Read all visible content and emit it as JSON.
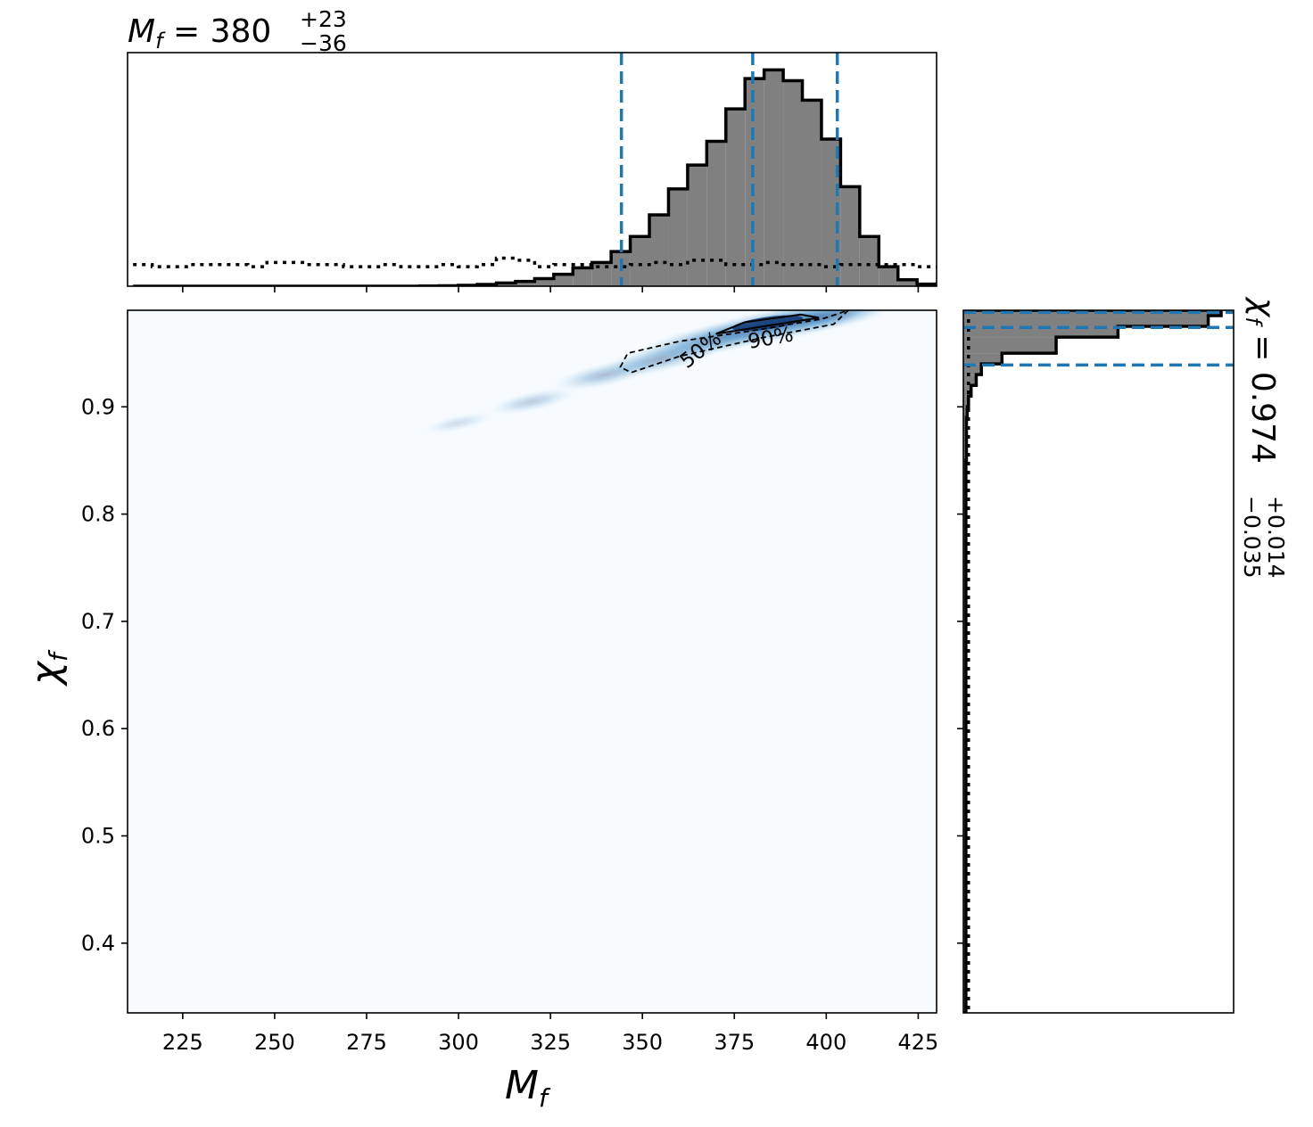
{
  "chart_data": [
    {
      "type": "histogram",
      "panel": "top-marginal",
      "title": {
        "symbol": "M",
        "sub": "f",
        "eq": " = ",
        "value": "380",
        "plus": "+23",
        "minus": "−36"
      },
      "x": [
        211.5,
        216.7,
        221.9,
        227.1,
        232.3,
        237.5,
        242.7,
        247.9,
        253.1,
        258.3,
        263.5,
        268.7,
        273.9,
        279.1,
        284.3,
        289.5,
        294.7,
        299.9,
        305.1,
        310.3,
        315.5,
        320.7,
        325.9,
        331.1,
        336.3,
        341.5,
        346.7,
        351.9,
        357.1,
        362.3,
        367.5,
        372.7,
        377.9,
        383.1,
        388.3,
        393.5,
        398.7,
        403.9,
        409.1,
        414.3,
        419.5,
        424.7,
        429.9
      ],
      "values": [
        0,
        0,
        0,
        0,
        0,
        0,
        0,
        0,
        0,
        0,
        0,
        0,
        0,
        0,
        0,
        0.001,
        0.002,
        0.004,
        0.008,
        0.015,
        0.022,
        0.035,
        0.055,
        0.085,
        0.11,
        0.16,
        0.23,
        0.33,
        0.45,
        0.56,
        0.67,
        0.82,
        0.96,
        1.0,
        0.95,
        0.86,
        0.68,
        0.46,
        0.23,
        0.09,
        0.03,
        0.01
      ],
      "prior_values": [
        0.1,
        0.09,
        0.09,
        0.1,
        0.1,
        0.1,
        0.09,
        0.11,
        0.11,
        0.1,
        0.1,
        0.09,
        0.09,
        0.1,
        0.09,
        0.09,
        0.1,
        0.09,
        0.1,
        0.13,
        0.12,
        0.09,
        0.1,
        0.1,
        0.09,
        0.09,
        0.1,
        0.11,
        0.1,
        0.12,
        0.12,
        0.1,
        0.1,
        0.11,
        0.1,
        0.1,
        0.09,
        0.1,
        0.1,
        0.1,
        0.1,
        0.09
      ],
      "quantile_lines": [
        344.3,
        380.0,
        403.0
      ],
      "xlim": [
        210,
        430
      ]
    },
    {
      "type": "heatmap",
      "panel": "joint",
      "xlabel": {
        "symbol": "M",
        "sub": "f"
      },
      "ylabel": {
        "symbol": "χ",
        "sub": "f"
      },
      "xlim": [
        210,
        430
      ],
      "ylim": [
        0.335,
        0.99
      ],
      "x_ticks": [
        "225",
        "250",
        "275",
        "300",
        "325",
        "350",
        "375",
        "400",
        "425"
      ],
      "x_tick_values": [
        225,
        250,
        275,
        300,
        325,
        350,
        375,
        400,
        425
      ],
      "y_ticks": [
        "0.9",
        "0.8",
        "0.7",
        "0.6",
        "0.5",
        "0.4"
      ],
      "y_tick_values": [
        0.9,
        0.8,
        0.7,
        0.6,
        0.5,
        0.4
      ],
      "contour_labels": [
        "50%",
        "90%"
      ],
      "contour_90": [
        [
          344,
          0.937
        ],
        [
          346,
          0.95
        ],
        [
          360,
          0.961
        ],
        [
          380,
          0.971
        ],
        [
          399,
          0.982
        ],
        [
          406,
          0.99
        ],
        [
          402,
          0.977
        ],
        [
          382,
          0.964
        ],
        [
          360,
          0.947
        ],
        [
          347,
          0.932
        ],
        [
          344,
          0.937
        ]
      ],
      "contour_50": [
        [
          370,
          0.968
        ],
        [
          383,
          0.975
        ],
        [
          398,
          0.983
        ],
        [
          393,
          0.986
        ],
        [
          378,
          0.979
        ],
        [
          370,
          0.968
        ]
      ],
      "density_peak": {
        "x": 384,
        "y": 0.978
      }
    },
    {
      "type": "histogram",
      "panel": "right-marginal",
      "title": {
        "symbol": "χ",
        "sub": "f",
        "eq": " = ",
        "value": "0.974",
        "plus": "+0.014",
        "minus": "−0.035"
      },
      "orientation": "horizontal",
      "bins_y": [
        0.99,
        0.985,
        0.975,
        0.965,
        0.95,
        0.94,
        0.93,
        0.92,
        0.91,
        0.9,
        0.89,
        0.85,
        0.8,
        0.7,
        0.6,
        0.5,
        0.4,
        0.335
      ],
      "values": [
        1.0,
        0.95,
        0.6,
        0.36,
        0.15,
        0.07,
        0.05,
        0.03,
        0.02,
        0.015,
        0.012,
        0.01,
        0.01,
        0.01,
        0.01,
        0.01,
        0.01
      ],
      "prior_value": 0.02,
      "quantile_lines": [
        0.939,
        0.974,
        0.988
      ],
      "ylim": [
        0.335,
        0.99
      ]
    }
  ]
}
